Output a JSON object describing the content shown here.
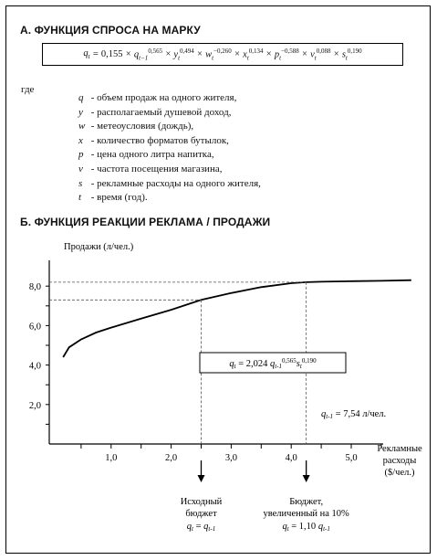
{
  "section_a": {
    "title": "А. ФУНКЦИЯ СПРОСА НА МАРКУ",
    "formula_display": "q_t = 0,155 × q_(t−1)^0,565 × y_t^0,494 × w_t^−0,260 × x_t^0,134 × p_t^−0,588 × v_t^0,088 × s_t^0,190",
    "formula": {
      "lhs": "q",
      "lhs_sub": "t",
      "const": "0,155",
      "terms": [
        {
          "sym": "q",
          "sub": "t−1",
          "exp": "0,565"
        },
        {
          "sym": "y",
          "sub": "t",
          "exp": "0,494"
        },
        {
          "sym": "w",
          "sub": "t",
          "exp": "−0,260"
        },
        {
          "sym": "x",
          "sub": "t",
          "exp": "0,134"
        },
        {
          "sym": "p",
          "sub": "t",
          "exp": "−0,588"
        },
        {
          "sym": "v",
          "sub": "t",
          "exp": "0,088"
        },
        {
          "sym": "s",
          "sub": "t",
          "exp": "0,190"
        }
      ]
    },
    "where": "где",
    "definitions": [
      {
        "sym": "q",
        "text": " - объем продаж на одного жителя,"
      },
      {
        "sym": "y",
        "text": " - располагаемый душевой доход,"
      },
      {
        "sym": "w",
        "text": " - метеоусловия (дождь),"
      },
      {
        "sym": "x",
        "text": " - количество форматов бутылок,"
      },
      {
        "sym": "p",
        "text": " - цена одного литра напитка,"
      },
      {
        "sym": "v",
        "text": " - частота посещения магазина,"
      },
      {
        "sym": "s",
        "text": " - рекламные расходы на одного жителя,"
      },
      {
        "sym": "t",
        "text": " - время (год)."
      }
    ]
  },
  "section_b": {
    "title": "Б. ФУНКЦИЯ РЕАКЦИИ РЕКЛАМА / ПРОДАЖИ"
  },
  "chart_data": {
    "type": "line",
    "ylabel": "Продажи (л/чел.)",
    "xlabel_lines": [
      "Рекламные",
      "расходы",
      "($/чел.)"
    ],
    "xlim": [
      0,
      6.0
    ],
    "ylim": [
      0,
      9.0
    ],
    "x_ticks": [
      "1,0",
      "2,0",
      "3,0",
      "4,0",
      "5,0"
    ],
    "x_tick_values": [
      1.0,
      2.0,
      3.0,
      4.0,
      5.0
    ],
    "y_ticks": [
      "2,0",
      "4,0",
      "6,0",
      "8,0"
    ],
    "y_tick_values": [
      2.0,
      4.0,
      6.0,
      8.0
    ],
    "series": [
      {
        "x": [
          0.2,
          0.3,
          0.5,
          0.75,
          1.0,
          1.5,
          2.0,
          2.5,
          3.0,
          3.5,
          4.0,
          4.25,
          4.5,
          5.0,
          5.5,
          6.0
        ],
        "y": [
          4.4,
          4.9,
          5.3,
          5.65,
          5.9,
          6.35,
          6.8,
          7.3,
          7.65,
          7.95,
          8.15,
          8.2,
          8.22,
          8.25,
          8.27,
          8.3
        ]
      }
    ],
    "reference_points": [
      {
        "x": 2.5,
        "y": 7.3
      },
      {
        "x": 4.25,
        "y": 8.2
      }
    ],
    "annotation_formula": "q_t = 2,024 q_(t-1)^0,565 s_t^0,190",
    "annotation_qprev": "q_(t-1) = 7,54 л/чел.",
    "arrow_labels": [
      {
        "lines": [
          "Исходный",
          "бюджет",
          "q_t = q_(t-1)"
        ]
      },
      {
        "lines": [
          "Бюджет,",
          "увеличенный на 10%",
          "q_t = 1,10 q_(t-1)"
        ]
      }
    ]
  }
}
